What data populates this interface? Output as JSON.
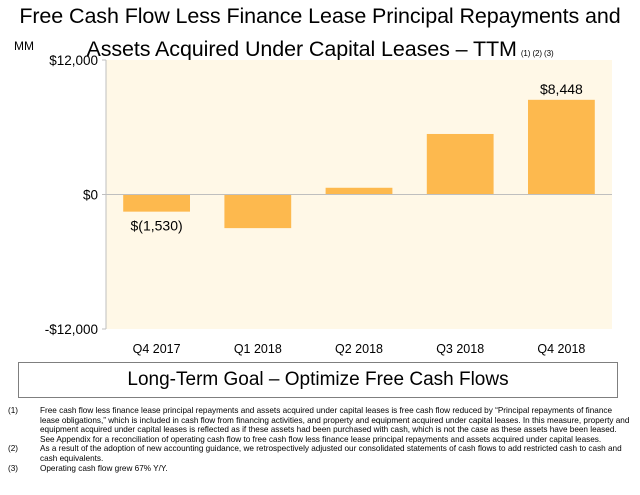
{
  "title": {
    "line1": "Free Cash Flow Less Finance Lease Principal Repayments and",
    "line2": "Assets Acquired Under Capital Leases – TTM",
    "footnote_refs": "(1) (2) (3)"
  },
  "units_label": "MM",
  "chart_data": {
    "type": "bar",
    "categories": [
      "Q4 2017",
      "Q1 2018",
      "Q2 2018",
      "Q3 2018",
      "Q4 2018"
    ],
    "values": [
      -1530,
      -3000,
      600,
      5400,
      8448
    ],
    "ylim": [
      -12000,
      12000
    ],
    "yticks": [
      12000,
      0,
      -12000
    ],
    "ytick_labels": [
      "$12,000",
      "$0",
      "-$12,000"
    ],
    "data_labels": [
      {
        "index": 0,
        "text": "$(1,530)",
        "position": "below"
      },
      {
        "index": 4,
        "text": "$8,448",
        "position": "above"
      }
    ],
    "xlabel": "",
    "ylabel": "",
    "grid": false,
    "bar_color": "#FDB94E",
    "plot_background": "#FFF8E7"
  },
  "goal_box": {
    "text": "Long-Term Goal – Optimize Free Cash Flows"
  },
  "footnotes": [
    {
      "num": "(1)",
      "text": "Free cash flow less finance lease principal repayments and assets acquired under capital leases is free cash flow reduced by “Principal repayments of finance lease obligations,” which is included in cash flow from financing activities, and property and equipment acquired under capital leases. In this measure, property and equipment acquired under capital leases is reflected as if these assets had been purchased with cash, which is not the case as these assets have been leased. See Appendix for a reconciliation of operating cash flow to free cash flow less finance lease principal repayments and assets acquired under capital leases."
    },
    {
      "num": "(2)",
      "text": "As a result of the adoption of new accounting guidance, we retrospectively adjusted our consolidated statements of cash flows to add restricted cash to cash and cash equivalents."
    },
    {
      "num": "(3)",
      "text": "Operating cash flow grew 67% Y/Y."
    }
  ]
}
